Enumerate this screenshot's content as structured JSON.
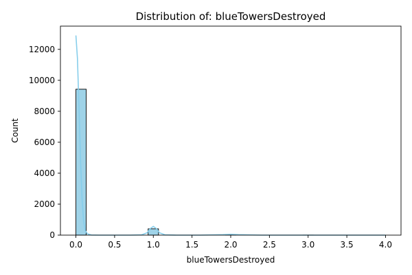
{
  "chart_data": {
    "type": "bar",
    "title": "Distribution of: blueTowersDestroyed",
    "xlabel": "blueTowersDestroyed",
    "ylabel": "Count",
    "xlim": [
      -0.2,
      4.2
    ],
    "ylim": [
      0,
      13500
    ],
    "x_ticks": [
      "0.0",
      "0.5",
      "1.0",
      "1.5",
      "2.0",
      "2.5",
      "3.0",
      "3.5",
      "4.0"
    ],
    "x_tick_values": [
      0,
      0.5,
      1,
      1.5,
      2,
      2.5,
      3,
      3.5,
      4
    ],
    "y_ticks": [
      "0",
      "2000",
      "4000",
      "6000",
      "8000",
      "10000",
      "12000"
    ],
    "y_tick_values": [
      0,
      2000,
      4000,
      6000,
      8000,
      10000,
      12000
    ],
    "grid": false,
    "bins": [
      {
        "x0": 0.0,
        "x1": 0.133,
        "count": 9425
      },
      {
        "x0": 0.933,
        "x1": 1.067,
        "count": 406
      },
      {
        "x0": 1.933,
        "x1": 2.067,
        "count": 42
      },
      {
        "x0": 2.933,
        "x1": 3.067,
        "count": 5
      },
      {
        "x0": 3.867,
        "x1": 4.0,
        "count": 1
      }
    ],
    "kde": {
      "x": [
        0.0,
        0.02,
        0.04,
        0.06,
        0.08,
        0.1,
        0.12,
        0.15,
        0.2,
        0.3,
        0.5,
        0.7,
        0.85,
        0.92,
        0.96,
        1.0,
        1.04,
        1.08,
        1.15,
        1.3,
        1.6,
        1.9,
        2.0,
        2.1,
        2.4,
        3.0,
        3.5,
        4.0
      ],
      "y": [
        12900,
        11400,
        8200,
        4800,
        2300,
        900,
        300,
        80,
        10,
        0,
        0,
        0,
        20,
        150,
        420,
        560,
        420,
        150,
        20,
        0,
        0,
        30,
        55,
        30,
        0,
        0,
        0,
        0
      ]
    },
    "colors": {
      "bar_fill": "#9fd3e8",
      "bar_edge": "#000000",
      "kde_line": "#87ceeb"
    }
  }
}
